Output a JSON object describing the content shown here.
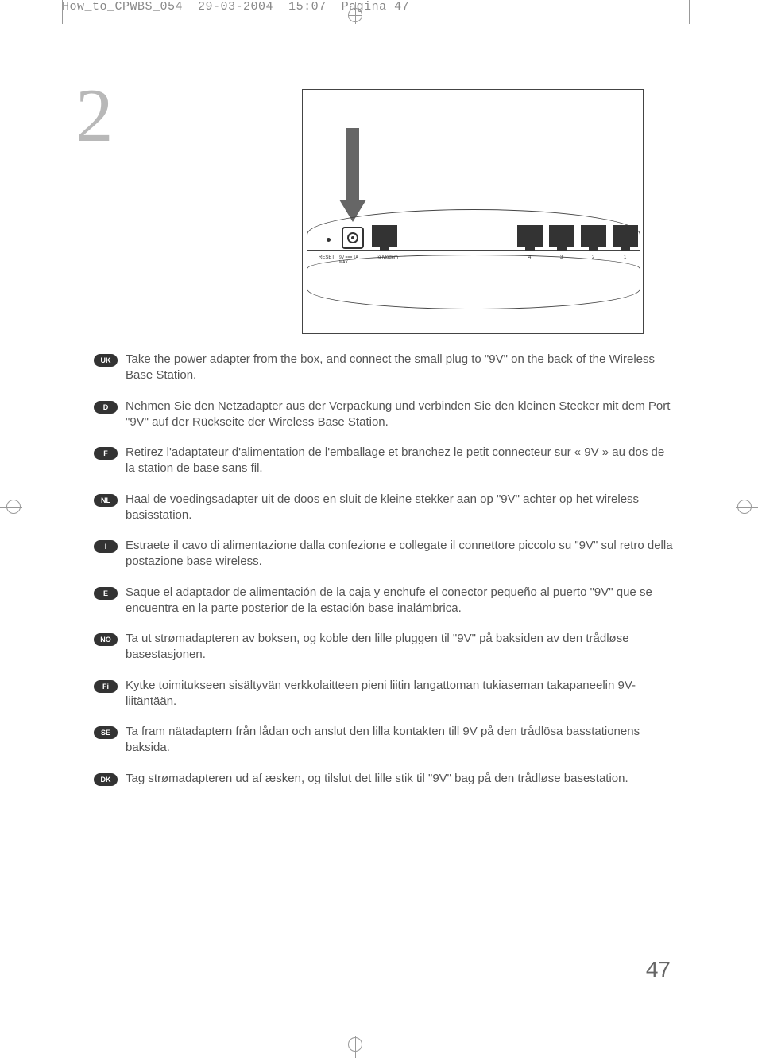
{
  "header": {
    "filename": "How_to_CPWBS_054",
    "date": "29-03-2004",
    "time": "15:07",
    "page_label": "Pagina 47"
  },
  "step_number": "2",
  "diagram": {
    "labels": {
      "reset": "RESET",
      "power": "9V ===\n1A MAX",
      "modem": "To Modem",
      "port4": "4",
      "port3": "3",
      "port2": "2",
      "port1": "1"
    }
  },
  "instructions": [
    {
      "lang": "UK",
      "text": "Take the power adapter from the box, and connect the small plug to \"9V\" on the back of the Wireless Base Station."
    },
    {
      "lang": "D",
      "text": "Nehmen Sie den Netzadapter aus der Verpackung und verbinden Sie den kleinen Stecker mit dem Port \"9V\" auf der Rückseite der Wireless Base Station."
    },
    {
      "lang": "F",
      "text": "Retirez l'adaptateur d'alimentation de l'emballage et branchez le petit connecteur sur « 9V » au dos de la station de base sans fil."
    },
    {
      "lang": "NL",
      "text": "Haal de voedingsadapter uit de doos en sluit de kleine stekker aan op \"9V\" achter op het wireless basisstation."
    },
    {
      "lang": "I",
      "text": "Estraete il cavo di alimentazione dalla confezione e collegate il connettore piccolo su \"9V\" sul retro della postazione base wireless."
    },
    {
      "lang": "E",
      "text": "Saque el adaptador de alimentación de la caja y enchufe el conector pequeño al puerto \"9V\" que se encuentra en la parte posterior de la estación base inalámbrica."
    },
    {
      "lang": "NO",
      "text": "Ta ut strømadapteren av boksen, og koble den lille pluggen til \"9V\" på baksiden av den trådløse basestasjonen."
    },
    {
      "lang": "Fi",
      "text": "Kytke toimitukseen sisältyvän verkkolaitteen pieni liitin langattoman tukiaseman takapaneelin 9V-liitäntään."
    },
    {
      "lang": "SE",
      "text": "Ta fram nätadaptern från lådan och anslut den lilla kontakten till 9V på den trådlösa basstationens baksida."
    },
    {
      "lang": "DK",
      "text": "Tag strømadapteren ud af æsken, og tilslut det lille stik til \"9V\" bag på den trådløse basestation."
    }
  ],
  "page_number": "47"
}
